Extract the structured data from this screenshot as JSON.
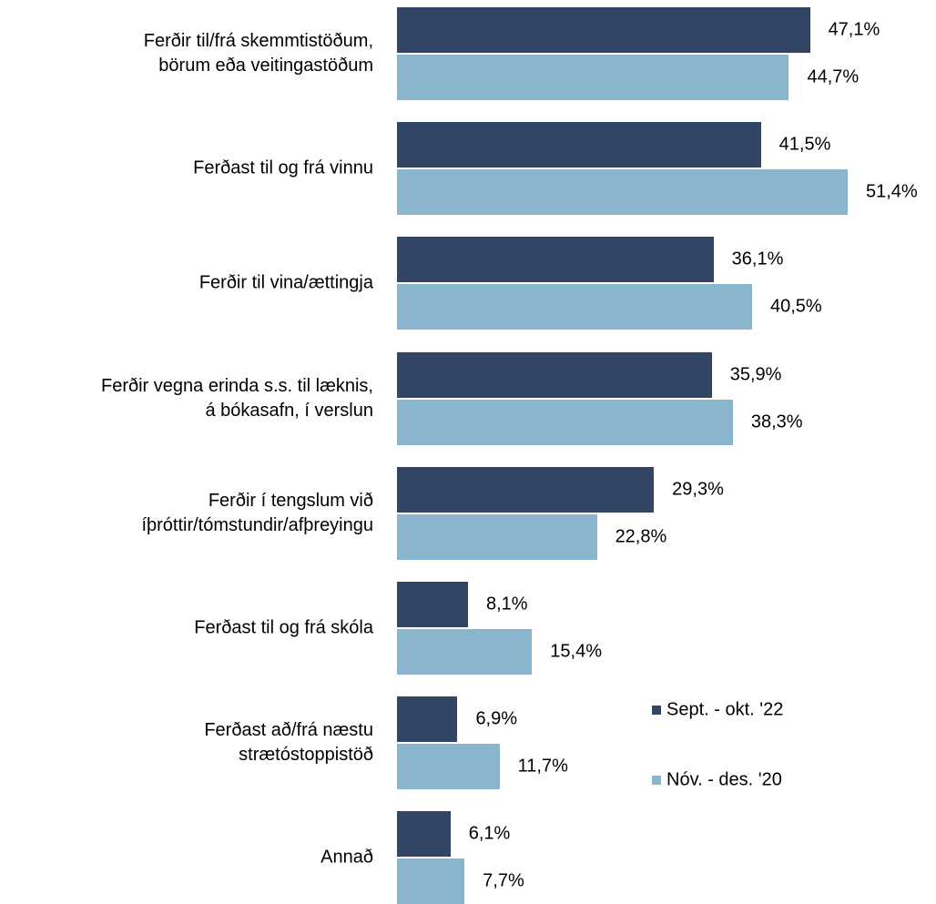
{
  "chart_data": {
    "type": "bar",
    "orientation": "horizontal",
    "categories": [
      "Ferðir til/frá skemmtistöðum,\nbörum eða veitingastöðum",
      "Ferðast til og frá vinnu",
      "Ferðir til vina/ættingja",
      "Ferðir vegna erinda s.s. til læknis,\ná bókasafn, í verslun",
      "Ferðir í tengslum við\níþróttir/tómstundir/afþreyingu",
      "Ferðast til og frá skóla",
      "Ferðast að/frá næstu\nstrætóstoppistöð",
      "Annað"
    ],
    "series": [
      {
        "name": "Sept. - okt. '22",
        "color": "#324565",
        "values": [
          47.1,
          41.5,
          36.1,
          35.9,
          29.3,
          8.1,
          6.9,
          6.1
        ],
        "value_labels": [
          "47,1%",
          "41,5%",
          "36,1%",
          "35,9%",
          "29,3%",
          "8,1%",
          "6,9%",
          "6,1%"
        ]
      },
      {
        "name": "Nóv. - des. '20",
        "color": "#89b6cc",
        "values": [
          44.7,
          51.4,
          40.5,
          38.3,
          22.8,
          15.4,
          11.7,
          7.7
        ],
        "value_labels": [
          "44,7%",
          "51,4%",
          "40,5%",
          "38,3%",
          "22,8%",
          "15,4%",
          "11,7%",
          "7,7%"
        ]
      }
    ],
    "legend": "right"
  }
}
